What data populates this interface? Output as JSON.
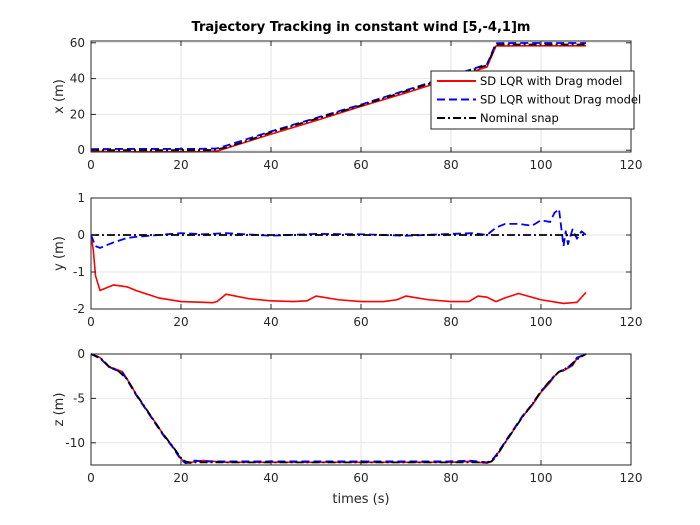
{
  "figure": {
    "title": "Trajectory Tracking in constant wind [5,-4,1]m",
    "xlabel_bottom": "times (s)"
  },
  "legend": {
    "items": [
      {
        "label": "SD LQR with Drag model",
        "color": "#ff0000",
        "style": "solid"
      },
      {
        "label": "SD LQR without Drag model",
        "color": "#0000ff",
        "style": "dashed"
      },
      {
        "label": "Nominal snap",
        "color": "#000000",
        "style": "dashdot"
      }
    ]
  },
  "chart_data": [
    {
      "type": "line",
      "title": "Trajectory Tracking in constant wind [5,-4,1]m",
      "xlabel": "",
      "ylabel": "x (m)",
      "xlim": [
        0,
        120
      ],
      "ylim": [
        -1,
        61
      ],
      "xticks": [
        0,
        20,
        40,
        60,
        80,
        100,
        120
      ],
      "yticks": [
        0,
        20,
        40,
        60
      ],
      "grid": true,
      "legend_position": "center-right",
      "series": [
        {
          "name": "SD LQR with Drag model",
          "color": "#ff0000",
          "style": "solid",
          "x": [
            0,
            5,
            10,
            20,
            25,
            28,
            30,
            35,
            40,
            50,
            60,
            70,
            80,
            88,
            90,
            95,
            100,
            105,
            110
          ],
          "y": [
            -0.6,
            -0.8,
            -0.9,
            -0.9,
            -0.8,
            -0.5,
            1.0,
            5.0,
            9.0,
            16.5,
            24.5,
            32.0,
            40.0,
            46.5,
            58.2,
            58.3,
            58.3,
            58.3,
            58.3
          ]
        },
        {
          "name": "SD LQR without Drag model",
          "color": "#0000ff",
          "style": "dashed",
          "x": [
            0,
            5,
            10,
            20,
            25,
            28,
            30,
            35,
            40,
            50,
            60,
            70,
            80,
            88,
            90,
            95,
            100,
            105,
            110
          ],
          "y": [
            0.6,
            0.7,
            0.7,
            0.7,
            0.8,
            1.0,
            2.5,
            6.5,
            10.5,
            18.0,
            25.5,
            33.5,
            41.5,
            48.0,
            59.8,
            59.9,
            59.9,
            59.9,
            59.9
          ]
        },
        {
          "name": "Nominal snap",
          "color": "#000000",
          "style": "dashdot",
          "x": [
            0,
            10,
            20,
            27,
            30,
            35,
            40,
            50,
            60,
            70,
            80,
            88,
            90,
            95,
            100,
            110
          ],
          "y": [
            0,
            0,
            0,
            0.1,
            1.5,
            5.5,
            10.0,
            17.5,
            25.0,
            33.0,
            41.0,
            47.5,
            59.0,
            59.0,
            59.0,
            59.0
          ]
        }
      ]
    },
    {
      "type": "line",
      "xlabel": "",
      "ylabel": "y (m)",
      "xlim": [
        0,
        120
      ],
      "ylim": [
        -2,
        1
      ],
      "xticks": [
        0,
        20,
        40,
        60,
        80,
        100,
        120
      ],
      "yticks": [
        -2,
        -1,
        0,
        1
      ],
      "grid": true,
      "series": [
        {
          "name": "SD LQR with Drag model",
          "color": "#ff0000",
          "style": "solid",
          "x": [
            0,
            0.5,
            1,
            2,
            3,
            5,
            8,
            10,
            15,
            20,
            25,
            27,
            28,
            29,
            30,
            35,
            40,
            45,
            48,
            50,
            55,
            60,
            65,
            68,
            70,
            75,
            80,
            84,
            86,
            88,
            90,
            92,
            95,
            100,
            105,
            108,
            110
          ],
          "y": [
            0,
            -0.4,
            -1.1,
            -1.5,
            -1.45,
            -1.35,
            -1.4,
            -1.5,
            -1.7,
            -1.8,
            -1.82,
            -1.83,
            -1.8,
            -1.7,
            -1.6,
            -1.72,
            -1.78,
            -1.8,
            -1.78,
            -1.65,
            -1.75,
            -1.8,
            -1.8,
            -1.75,
            -1.65,
            -1.75,
            -1.8,
            -1.8,
            -1.65,
            -1.68,
            -1.8,
            -1.7,
            -1.58,
            -1.75,
            -1.85,
            -1.82,
            -1.55
          ]
        },
        {
          "name": "SD LQR without Drag model",
          "color": "#0000ff",
          "style": "dashed",
          "x": [
            0,
            1,
            2,
            5,
            8,
            10,
            15,
            20,
            25,
            30,
            40,
            50,
            60,
            70,
            80,
            85,
            88,
            90,
            92,
            95,
            98,
            100,
            102,
            103,
            104,
            104.5,
            105,
            105.5,
            106,
            107,
            108,
            109,
            110
          ],
          "y": [
            0,
            -0.3,
            -0.35,
            -0.2,
            -0.08,
            -0.05,
            0.0,
            0.05,
            0.02,
            0.05,
            -0.02,
            0.03,
            0.02,
            -0.02,
            0.03,
            0.05,
            0.0,
            0.2,
            0.3,
            0.3,
            0.25,
            0.4,
            0.35,
            0.6,
            0.7,
            0.2,
            -0.3,
            0.1,
            -0.25,
            0.15,
            -0.1,
            0.1,
            0.0
          ]
        },
        {
          "name": "Nominal snap",
          "color": "#000000",
          "style": "dashdot",
          "x": [
            0,
            110
          ],
          "y": [
            0,
            0
          ]
        }
      ]
    },
    {
      "type": "line",
      "xlabel": "times (s)",
      "ylabel": "z (m)",
      "xlim": [
        0,
        120
      ],
      "ylim": [
        -12.5,
        0
      ],
      "xticks": [
        0,
        20,
        40,
        60,
        80,
        100,
        120
      ],
      "yticks": [
        -10,
        -5,
        0
      ],
      "grid": true,
      "series": [
        {
          "name": "SD LQR with Drag model",
          "color": "#ff0000",
          "style": "solid",
          "x": [
            0,
            2,
            4,
            5,
            7,
            8,
            10,
            12,
            14,
            16,
            18,
            20,
            21,
            22,
            23,
            25,
            30,
            40,
            50,
            60,
            70,
            80,
            84,
            86,
            88,
            89,
            90,
            92,
            94,
            96,
            98,
            100,
            102,
            103,
            104,
            105,
            106,
            107,
            108,
            110
          ],
          "y": [
            0,
            -0.4,
            -1.5,
            -1.6,
            -2.0,
            -2.8,
            -4.5,
            -6.0,
            -7.5,
            -9.0,
            -10.3,
            -11.8,
            -12.2,
            -12.3,
            -12.1,
            -12.0,
            -12.2,
            -12.2,
            -12.2,
            -12.2,
            -12.2,
            -12.2,
            -12.1,
            -12.2,
            -12.3,
            -12.1,
            -11.5,
            -10.0,
            -8.5,
            -7.0,
            -5.8,
            -4.3,
            -3.2,
            -2.5,
            -2.0,
            -1.9,
            -1.6,
            -1.3,
            -0.5,
            0.0
          ]
        },
        {
          "name": "SD LQR without Drag model",
          "color": "#0000ff",
          "style": "dashed",
          "x": [
            0,
            2,
            4,
            5,
            7,
            8,
            10,
            12,
            14,
            16,
            18,
            20,
            21,
            22,
            23,
            25,
            30,
            40,
            50,
            60,
            70,
            80,
            84,
            86,
            88,
            89,
            90,
            92,
            94,
            96,
            98,
            100,
            102,
            103,
            104,
            105,
            106,
            107,
            108,
            110
          ],
          "y": [
            0,
            -0.5,
            -1.4,
            -1.7,
            -2.1,
            -2.9,
            -4.6,
            -6.1,
            -7.6,
            -9.1,
            -10.4,
            -11.9,
            -12.3,
            -12.2,
            -12.0,
            -12.1,
            -12.1,
            -12.1,
            -12.1,
            -12.1,
            -12.1,
            -12.1,
            -12.0,
            -12.1,
            -12.2,
            -12.0,
            -11.4,
            -9.9,
            -8.4,
            -6.9,
            -5.7,
            -4.2,
            -3.1,
            -2.4,
            -2.0,
            -1.8,
            -1.5,
            -1.2,
            -0.4,
            0.0
          ]
        },
        {
          "name": "Nominal snap",
          "color": "#000000",
          "style": "dashdot",
          "x": [
            0,
            2,
            4,
            6,
            8,
            10,
            12,
            14,
            16,
            18,
            20,
            21,
            22,
            24,
            30,
            40,
            50,
            60,
            70,
            80,
            86,
            88,
            89,
            90,
            92,
            94,
            96,
            98,
            100,
            102,
            104,
            106,
            108,
            110
          ],
          "y": [
            0,
            -0.4,
            -1.4,
            -1.9,
            -2.8,
            -4.5,
            -6.0,
            -7.5,
            -9.0,
            -10.3,
            -11.7,
            -12.1,
            -12.2,
            -12.2,
            -12.2,
            -12.2,
            -12.2,
            -12.2,
            -12.2,
            -12.2,
            -12.2,
            -12.2,
            -12.1,
            -11.6,
            -10.0,
            -8.5,
            -7.0,
            -5.7,
            -4.2,
            -3.0,
            -2.0,
            -1.5,
            -0.6,
            0.0
          ]
        }
      ]
    }
  ]
}
